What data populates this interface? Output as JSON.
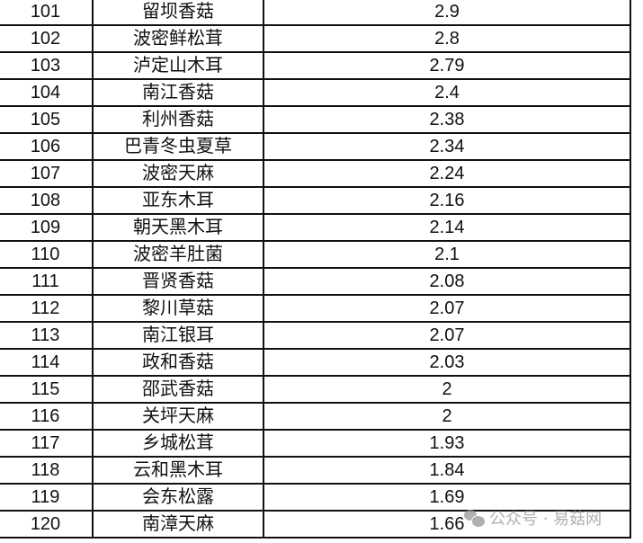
{
  "rows": [
    {
      "rank": "101",
      "name": "留坝香菇",
      "value": "2.9"
    },
    {
      "rank": "102",
      "name": "波密鲜松茸",
      "value": "2.8"
    },
    {
      "rank": "103",
      "name": "泸定山木耳",
      "value": "2.79"
    },
    {
      "rank": "104",
      "name": "南江香菇",
      "value": "2.4"
    },
    {
      "rank": "105",
      "name": "利州香菇",
      "value": "2.38"
    },
    {
      "rank": "106",
      "name": "巴青冬虫夏草",
      "value": "2.34"
    },
    {
      "rank": "107",
      "name": "波密天麻",
      "value": "2.24"
    },
    {
      "rank": "108",
      "name": "亚东木耳",
      "value": "2.16"
    },
    {
      "rank": "109",
      "name": "朝天黑木耳",
      "value": "2.14"
    },
    {
      "rank": "110",
      "name": "波密羊肚菌",
      "value": "2.1"
    },
    {
      "rank": "111",
      "name": "晋贤香菇",
      "value": "2.08"
    },
    {
      "rank": "112",
      "name": "黎川草菇",
      "value": "2.07"
    },
    {
      "rank": "113",
      "name": "南江银耳",
      "value": "2.07"
    },
    {
      "rank": "114",
      "name": "政和香菇",
      "value": "2.03"
    },
    {
      "rank": "115",
      "name": "邵武香菇",
      "value": "2"
    },
    {
      "rank": "116",
      "name": "关坪天麻",
      "value": "2"
    },
    {
      "rank": "117",
      "name": "乡城松茸",
      "value": "1.93"
    },
    {
      "rank": "118",
      "name": "云和黑木耳",
      "value": "1.84"
    },
    {
      "rank": "119",
      "name": "会东松露",
      "value": "1.69"
    },
    {
      "rank": "120",
      "name": "南漳天麻",
      "value": "1.66"
    }
  ],
  "watermark": {
    "text": "公众号 · 易菇网",
    "icon": "wechat-icon"
  }
}
